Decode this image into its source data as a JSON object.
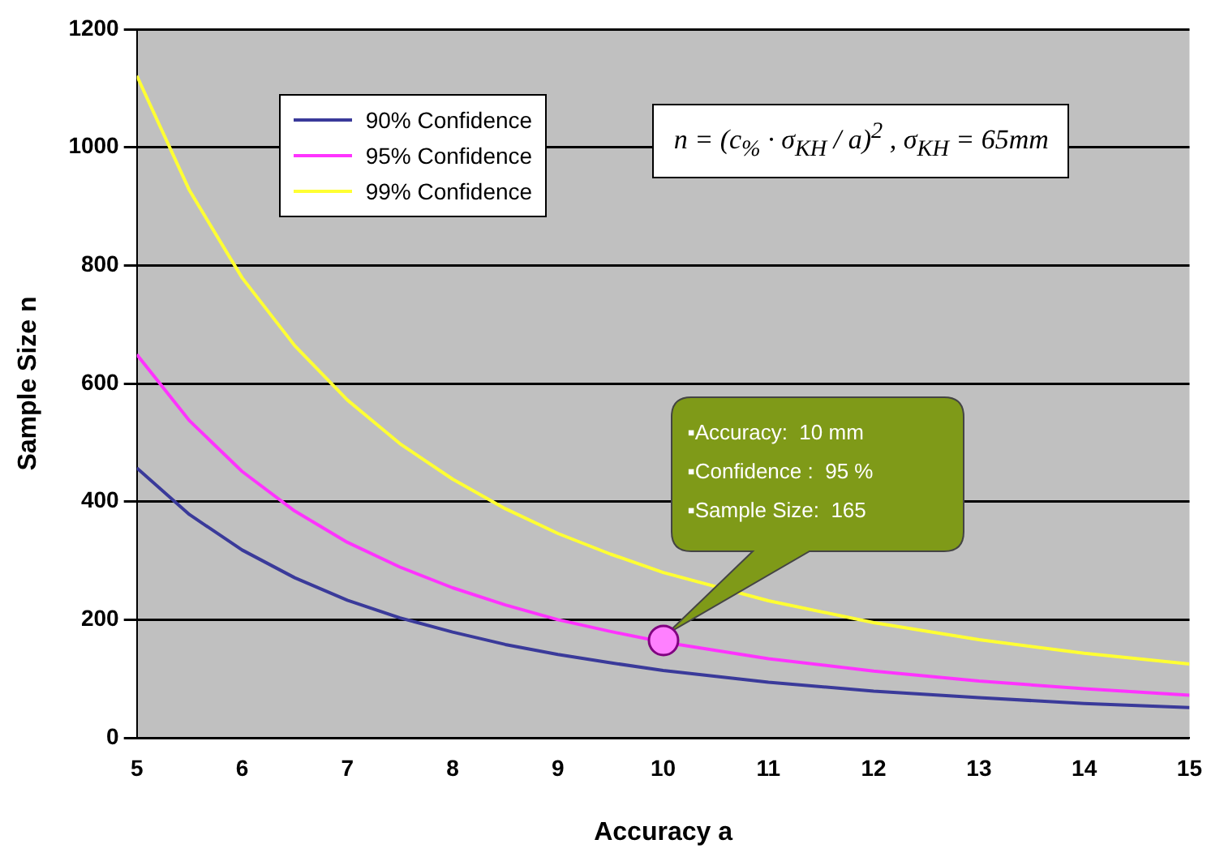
{
  "chart_data": {
    "type": "line",
    "xlabel": "Accuracy a",
    "ylabel": "Sample Size n",
    "x": [
      5,
      5.5,
      6,
      6.5,
      7,
      7.5,
      8,
      8.5,
      9,
      9.5,
      10,
      11,
      12,
      13,
      14,
      15
    ],
    "series": [
      {
        "name": "90% Confidence",
        "color": "#3a3a9a",
        "values": [
          457,
          378,
          318,
          271,
          233,
          203,
          179,
          158,
          141,
          127,
          114,
          94,
          79,
          68,
          58,
          51
        ]
      },
      {
        "name": "95% Confidence",
        "color": "#ff33ff",
        "values": [
          649,
          537,
          451,
          384,
          331,
          289,
          254,
          225,
          200,
          180,
          162,
          134,
          113,
          96,
          83,
          72
        ]
      },
      {
        "name": "99% Confidence",
        "color": "#ffff33",
        "values": [
          1121,
          927,
          779,
          664,
          572,
          498,
          438,
          388,
          346,
          311,
          280,
          232,
          195,
          166,
          143,
          125
        ]
      }
    ],
    "xlim": [
      5,
      15
    ],
    "xticks": [
      5,
      6,
      7,
      8,
      9,
      10,
      11,
      12,
      13,
      14,
      15
    ],
    "ylim": [
      0,
      1200
    ],
    "yticks": [
      0,
      200,
      400,
      600,
      800,
      1000,
      1200
    ],
    "grid": "y",
    "legend": "top left",
    "marker": "none",
    "line_style": "solid",
    "annotations": [
      "n = (c$_{%}$ · σ$_{KH}$ / a)$^{2}$ , σ$_{KH}$ = 65mm",
      "▪Accuracy:  10 mm\n▪Confidence :  95 %\n▪Sample Size:  165"
    ]
  }
}
